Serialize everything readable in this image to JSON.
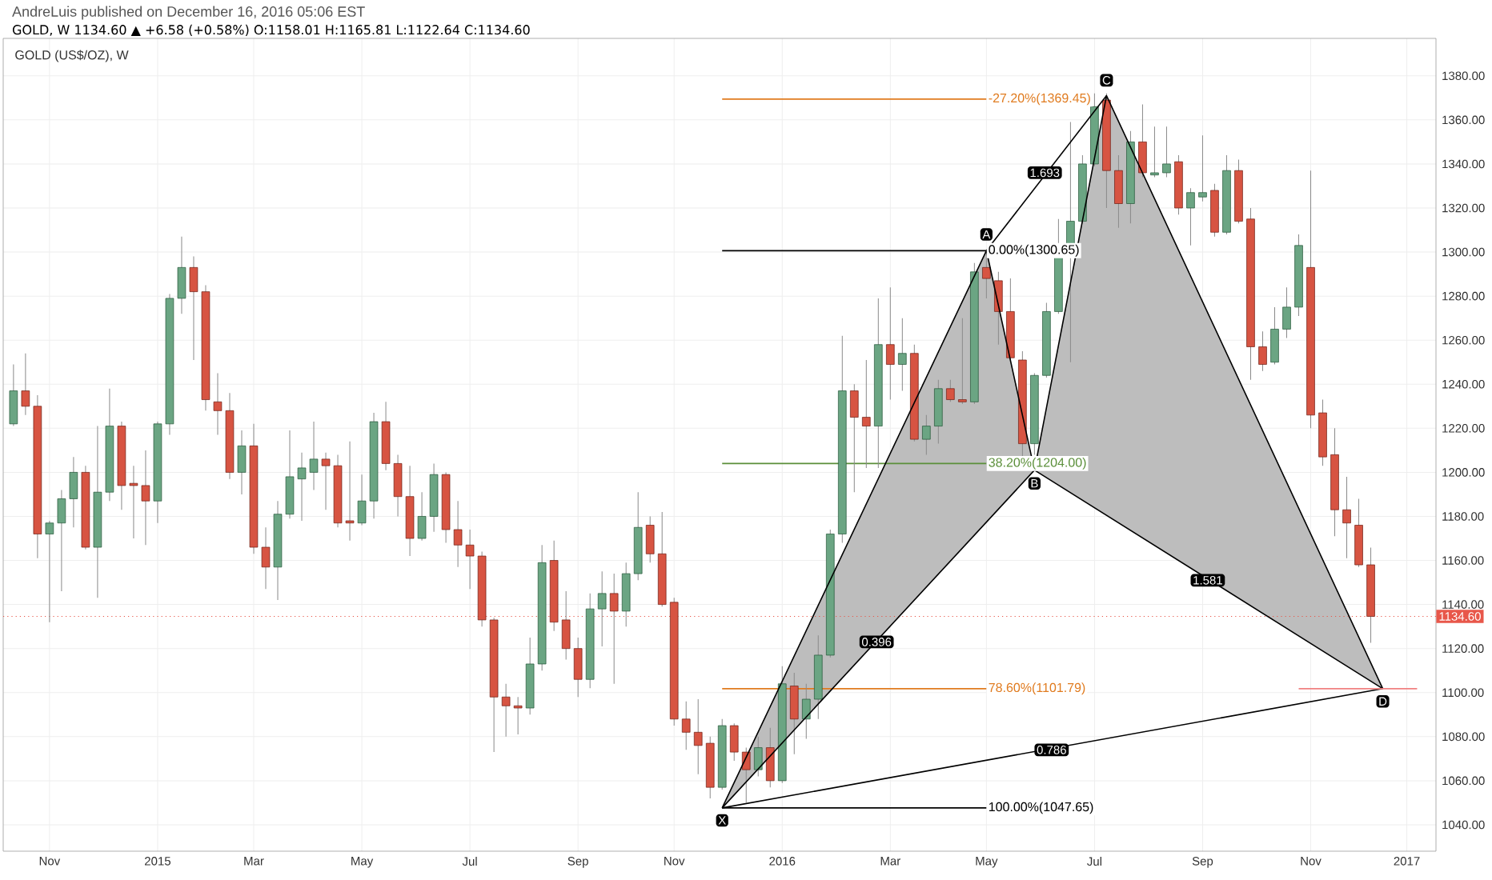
{
  "chart_data": {
    "type": "candlestick",
    "title": "AndreLuis published on December 16, 2016 05:06 EST",
    "subtitle": "GOLD, W 1134.60 ▲ +6.58 (+0.58%) O:1158.01 H:1165.81 L:1122.64 C:1134.60",
    "x": [
      "2014-10-13",
      "2014-10-20",
      "2014-10-27",
      "2014-11-03",
      "2014-11-10",
      "2014-11-17",
      "2014-11-24",
      "2014-12-01",
      "2014-12-08",
      "2014-12-15",
      "2014-12-22",
      "2014-12-29",
      "2015-01-05",
      "2015-01-12",
      "2015-01-19",
      "2015-01-26",
      "2015-02-02",
      "2015-02-09",
      "2015-02-16",
      "2015-02-23",
      "2015-03-02",
      "2015-03-09",
      "2015-03-16",
      "2015-03-23",
      "2015-03-30",
      "2015-04-06",
      "2015-04-13",
      "2015-04-20",
      "2015-04-27",
      "2015-05-04",
      "2015-05-11",
      "2015-05-18",
      "2015-05-25",
      "2015-06-01",
      "2015-06-08",
      "2015-06-15",
      "2015-06-22",
      "2015-06-29",
      "2015-07-06",
      "2015-07-13",
      "2015-07-20",
      "2015-07-27",
      "2015-08-03",
      "2015-08-10",
      "2015-08-17",
      "2015-08-24",
      "2015-08-31",
      "2015-09-07",
      "2015-09-14",
      "2015-09-21",
      "2015-09-28",
      "2015-10-05",
      "2015-10-12",
      "2015-10-19",
      "2015-10-26",
      "2015-11-02",
      "2015-11-09",
      "2015-11-16",
      "2015-11-23",
      "2015-11-30",
      "2015-12-07",
      "2015-12-14",
      "2015-12-21",
      "2015-12-28",
      "2016-01-04",
      "2016-01-11",
      "2016-01-18",
      "2016-01-25",
      "2016-02-01",
      "2016-02-08",
      "2016-02-15",
      "2016-02-22",
      "2016-02-29",
      "2016-03-07",
      "2016-03-14",
      "2016-03-21",
      "2016-03-28",
      "2016-04-04",
      "2016-04-11",
      "2016-04-18",
      "2016-04-25",
      "2016-05-02",
      "2016-05-09",
      "2016-05-16",
      "2016-05-23",
      "2016-05-30",
      "2016-06-06",
      "2016-06-13",
      "2016-06-20",
      "2016-06-27",
      "2016-07-04",
      "2016-07-11",
      "2016-07-18",
      "2016-07-25",
      "2016-08-01",
      "2016-08-08",
      "2016-08-15",
      "2016-08-22",
      "2016-08-29",
      "2016-09-05",
      "2016-09-12",
      "2016-09-19",
      "2016-09-26",
      "2016-10-03",
      "2016-10-10",
      "2016-10-17",
      "2016-10-24",
      "2016-10-31",
      "2016-11-07",
      "2016-11-14",
      "2016-11-21",
      "2016-11-28",
      "2016-12-05",
      "2016-12-12"
    ],
    "ohlc": [
      [
        1222,
        1249,
        1221,
        1237
      ],
      [
        1237,
        1254,
        1226,
        1230
      ],
      [
        1230,
        1235,
        1161,
        1172
      ],
      [
        1172,
        1178,
        1132,
        1177
      ],
      [
        1177,
        1192,
        1146,
        1188
      ],
      [
        1188,
        1207,
        1175,
        1200
      ],
      [
        1200,
        1203,
        1165,
        1166
      ],
      [
        1166,
        1221,
        1143,
        1191
      ],
      [
        1191,
        1238,
        1187,
        1221
      ],
      [
        1221,
        1223,
        1183,
        1194
      ],
      [
        1195,
        1203,
        1170,
        1194
      ],
      [
        1194,
        1210,
        1167,
        1187
      ],
      [
        1187,
        1223,
        1177,
        1222
      ],
      [
        1222,
        1281,
        1217,
        1279
      ],
      [
        1279,
        1307,
        1272,
        1293
      ],
      [
        1293,
        1298,
        1251,
        1282
      ],
      [
        1282,
        1285,
        1228,
        1233
      ],
      [
        1232,
        1245,
        1217,
        1228
      ],
      [
        1228,
        1236,
        1197,
        1200
      ],
      [
        1200,
        1219,
        1190,
        1212
      ],
      [
        1212,
        1222,
        1163,
        1166
      ],
      [
        1166,
        1175,
        1147,
        1157
      ],
      [
        1157,
        1187,
        1142,
        1181
      ],
      [
        1181,
        1219,
        1179,
        1198
      ],
      [
        1197,
        1209,
        1178,
        1202
      ],
      [
        1200,
        1223,
        1192,
        1206
      ],
      [
        1206,
        1209,
        1183,
        1203
      ],
      [
        1203,
        1208,
        1175,
        1177
      ],
      [
        1178,
        1214,
        1169,
        1177
      ],
      [
        1177,
        1199,
        1176,
        1187
      ],
      [
        1187,
        1227,
        1179,
        1223
      ],
      [
        1223,
        1232,
        1201,
        1204
      ],
      [
        1204,
        1208,
        1180,
        1189
      ],
      [
        1189,
        1203,
        1162,
        1170
      ],
      [
        1170,
        1191,
        1169,
        1180
      ],
      [
        1180,
        1204,
        1173,
        1199
      ],
      [
        1199,
        1200,
        1168,
        1174
      ],
      [
        1174,
        1187,
        1157,
        1167
      ],
      [
        1167,
        1174,
        1147,
        1162
      ],
      [
        1162,
        1164,
        1130,
        1133
      ],
      [
        1133,
        1134,
        1073,
        1098
      ],
      [
        1098,
        1104,
        1080,
        1094
      ],
      [
        1094,
        1098,
        1081,
        1093
      ],
      [
        1093,
        1125,
        1090,
        1113
      ],
      [
        1113,
        1167,
        1110,
        1159
      ],
      [
        1160,
        1169,
        1128,
        1132
      ],
      [
        1133,
        1146,
        1115,
        1120
      ],
      [
        1120,
        1125,
        1098,
        1106
      ],
      [
        1106,
        1145,
        1102,
        1138
      ],
      [
        1138,
        1155,
        1121,
        1145
      ],
      [
        1145,
        1154,
        1104,
        1137
      ],
      [
        1137,
        1159,
        1130,
        1154
      ],
      [
        1154,
        1191,
        1151,
        1175
      ],
      [
        1176,
        1180,
        1159,
        1163
      ],
      [
        1163,
        1182,
        1139,
        1140
      ],
      [
        1141,
        1143,
        1085,
        1088
      ],
      [
        1088,
        1096,
        1074,
        1082
      ],
      [
        1082,
        1097,
        1063,
        1076
      ],
      [
        1077,
        1080,
        1052,
        1057
      ],
      [
        1057,
        1088,
        1056,
        1085
      ],
      [
        1085,
        1086,
        1069,
        1073
      ],
      [
        1073,
        1075,
        1050,
        1065
      ],
      [
        1065,
        1080,
        1062,
        1075
      ],
      [
        1075,
        1084,
        1057,
        1060
      ],
      [
        1060,
        1112,
        1059,
        1104
      ],
      [
        1103,
        1109,
        1072,
        1088
      ],
      [
        1088,
        1104,
        1079,
        1097
      ],
      [
        1097,
        1126,
        1088,
        1117
      ],
      [
        1117,
        1174,
        1116,
        1172
      ],
      [
        1172,
        1262,
        1168,
        1237
      ],
      [
        1237,
        1240,
        1191,
        1225
      ],
      [
        1225,
        1251,
        1202,
        1221
      ],
      [
        1221,
        1279,
        1202,
        1258
      ],
      [
        1258,
        1284,
        1233,
        1249
      ],
      [
        1249,
        1270,
        1237,
        1254
      ],
      [
        1254,
        1258,
        1214,
        1215
      ],
      [
        1215,
        1226,
        1208,
        1221
      ],
      [
        1221,
        1242,
        1213,
        1238
      ],
      [
        1238,
        1242,
        1232,
        1233
      ],
      [
        1233,
        1270,
        1231,
        1232
      ],
      [
        1232,
        1295,
        1231,
        1291
      ],
      [
        1293,
        1299,
        1279,
        1288
      ],
      [
        1287,
        1291,
        1258,
        1273
      ],
      [
        1273,
        1288,
        1250,
        1252
      ],
      [
        1251,
        1255,
        1206,
        1213
      ],
      [
        1213,
        1245,
        1208,
        1244
      ],
      [
        1244,
        1277,
        1243,
        1273
      ],
      [
        1273,
        1315,
        1272,
        1298
      ],
      [
        1298,
        1359,
        1250,
        1314
      ],
      [
        1314,
        1344,
        1313,
        1340
      ],
      [
        1340,
        1372,
        1339,
        1366
      ],
      [
        1369,
        1372,
        1320,
        1337
      ],
      [
        1337,
        1344,
        1311,
        1322
      ],
      [
        1322,
        1355,
        1313,
        1350
      ],
      [
        1350,
        1367,
        1334,
        1336
      ],
      [
        1335,
        1357,
        1334,
        1336
      ],
      [
        1336,
        1357,
        1334,
        1340
      ],
      [
        1341,
        1344,
        1317,
        1320
      ],
      [
        1320,
        1329,
        1303,
        1327
      ],
      [
        1325,
        1353,
        1323,
        1327
      ],
      [
        1328,
        1331,
        1307,
        1309
      ],
      [
        1309,
        1344,
        1308,
        1337
      ],
      [
        1337,
        1342,
        1313,
        1314
      ],
      [
        1315,
        1320,
        1242,
        1257
      ],
      [
        1257,
        1264,
        1246,
        1249
      ],
      [
        1250,
        1275,
        1249,
        1265
      ],
      [
        1265,
        1284,
        1261,
        1275
      ],
      [
        1275,
        1308,
        1271,
        1303
      ],
      [
        1293,
        1337,
        1220,
        1226
      ],
      [
        1227,
        1233,
        1203,
        1207
      ],
      [
        1208,
        1220,
        1171,
        1183
      ],
      [
        1183,
        1198,
        1161,
        1177
      ],
      [
        1176,
        1188,
        1157,
        1158
      ],
      [
        1158.01,
        1165.81,
        1122.64,
        1134.6
      ]
    ],
    "series": [
      {
        "type": "line",
        "color": "#000000",
        "x": [
          "2015-11-30",
          "2016-05-02",
          "2016-05-30",
          "2016-07-11",
          "2016-12-19"
        ],
        "values": [
          1047.65,
          1300.65,
          1201,
          1371,
          1101.79
        ]
      },
      {
        "type": "line",
        "color": "#000000",
        "x": [
          "2015-11-30",
          "2016-05-30",
          "2016-12-19"
        ],
        "values": [
          1047.65,
          1201,
          1101.79
        ]
      },
      {
        "type": "line",
        "color": "#000000",
        "x": [
          "2016-05-02",
          "2016-07-11"
        ],
        "values": [
          1300.65,
          1371
        ]
      },
      {
        "type": "line",
        "color": "#000000",
        "x": [
          "2015-11-30",
          "2016-12-19"
        ],
        "values": [
          1047.65,
          1101.79
        ]
      },
      {
        "type": "line",
        "color": "#f08080",
        "x": [
          "2016-10-31",
          "2017-01-08"
        ],
        "values": [
          1101.79,
          1101.79
        ]
      },
      {
        "type": "area",
        "color": "#bdbdbd",
        "x": [
          "2015-11-30",
          "2016-05-02",
          "2016-05-30"
        ],
        "values": [
          1047.65,
          1300.65,
          1201
        ]
      },
      {
        "type": "area",
        "color": "#bdbdbd",
        "x": [
          "2016-05-30",
          "2016-07-11",
          "2016-12-19"
        ],
        "values": [
          1201,
          1371,
          1101.79
        ]
      }
    ],
    "ref_lines": [
      {
        "axis": "y",
        "value": 1369.45,
        "label": "-27.20%(1369.45)",
        "color": "#e07b1f",
        "line_style": "solid"
      },
      {
        "axis": "y",
        "value": 1300.65,
        "label": "0.00%(1300.65)",
        "color": "#000000",
        "line_style": "solid"
      },
      {
        "axis": "y",
        "value": 1204.0,
        "label": "38.20%(1204.00)",
        "color": "#5b8f3a",
        "line_style": "solid"
      },
      {
        "axis": "y",
        "value": 1101.79,
        "label": "78.60%(1101.79)",
        "color": "#e07b1f",
        "line_style": "solid"
      },
      {
        "axis": "y",
        "value": 1047.65,
        "label": "100.00%(1047.65)",
        "color": "#000000",
        "line_style": "solid"
      },
      {
        "axis": "y",
        "value": 1134.6,
        "label": "1134.60",
        "color": "#e8574a",
        "line_style": "dotted"
      }
    ],
    "annotations": [
      {
        "text": "X",
        "x": "2015-11-30",
        "y": 1042
      },
      {
        "text": "A",
        "x": "2016-05-02",
        "y": 1308
      },
      {
        "text": "B",
        "x": "2016-05-30",
        "y": 1195
      },
      {
        "text": "C",
        "x": "2016-07-11",
        "y": 1378
      },
      {
        "text": "D",
        "x": "2016-12-19",
        "y": 1096
      },
      {
        "text": "0.396",
        "x": "2016-02-28",
        "y": 1123
      },
      {
        "text": "1.693",
        "x": "2016-06-05",
        "y": 1336
      },
      {
        "text": "1.581",
        "x": "2016-09-08",
        "y": 1151
      },
      {
        "text": "0.786",
        "x": "2016-06-09",
        "y": 1074
      },
      "GOLD (US$/OZ), W"
    ],
    "xlim": [
      "2014-10-07",
      "2017-01-19"
    ],
    "xticks": [
      {
        "value": "2014-11-03",
        "label": "Nov"
      },
      {
        "value": "2015-01-05",
        "label": "2015"
      },
      {
        "value": "2015-03-02",
        "label": "Mar"
      },
      {
        "value": "2015-05-04",
        "label": "May"
      },
      {
        "value": "2015-07-06",
        "label": "Jul"
      },
      {
        "value": "2015-09-07",
        "label": "Sep"
      },
      {
        "value": "2015-11-02",
        "label": "Nov"
      },
      {
        "value": "2016-01-04",
        "label": "2016"
      },
      {
        "value": "2016-03-07",
        "label": "Mar"
      },
      {
        "value": "2016-05-02",
        "label": "May"
      },
      {
        "value": "2016-07-04",
        "label": "Jul"
      },
      {
        "value": "2016-09-05",
        "label": "Sep"
      },
      {
        "value": "2016-11-07",
        "label": "Nov"
      },
      {
        "value": "2017-01-02",
        "label": "2017"
      }
    ],
    "ylim": [
      1028,
      1397
    ],
    "yticks": [
      {
        "value": 1040,
        "label": "1040.00"
      },
      {
        "value": 1060,
        "label": "1060.00"
      },
      {
        "value": 1080,
        "label": "1080.00"
      },
      {
        "value": 1100,
        "label": "1100.00"
      },
      {
        "value": 1120,
        "label": "1120.00"
      },
      {
        "value": 1140,
        "label": "1140.00"
      },
      {
        "value": 1160,
        "label": "1160.00"
      },
      {
        "value": 1180,
        "label": "1180.00"
      },
      {
        "value": 1200,
        "label": "1200.00"
      },
      {
        "value": 1220,
        "label": "1220.00"
      },
      {
        "value": 1240,
        "label": "1240.00"
      },
      {
        "value": 1260,
        "label": "1260.00"
      },
      {
        "value": 1280,
        "label": "1280.00"
      },
      {
        "value": 1300,
        "label": "1300.00"
      },
      {
        "value": 1320,
        "label": "1320.00"
      },
      {
        "value": 1340,
        "label": "1340.00"
      },
      {
        "value": 1360,
        "label": "1360.00"
      },
      {
        "value": 1380,
        "label": "1380.00"
      }
    ],
    "grid": true
  }
}
